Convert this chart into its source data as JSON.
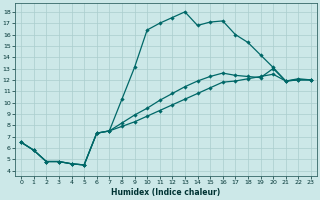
{
  "xlabel": "Humidex (Indice chaleur)",
  "bg_color": "#cce8e8",
  "line_color": "#006868",
  "grid_color": "#aacece",
  "xlim": [
    -0.5,
    23.5
  ],
  "ylim": [
    3.5,
    18.8
  ],
  "yticks": [
    4,
    5,
    6,
    7,
    8,
    9,
    10,
    11,
    12,
    13,
    14,
    15,
    16,
    17,
    18
  ],
  "xticks": [
    0,
    1,
    2,
    3,
    4,
    5,
    6,
    7,
    8,
    9,
    10,
    11,
    12,
    13,
    14,
    15,
    16,
    17,
    18,
    19,
    20,
    21,
    22,
    23
  ],
  "line1_x": [
    0,
    1,
    2,
    3,
    4,
    5,
    6,
    7,
    8,
    9,
    10,
    11,
    12,
    13,
    14,
    15,
    16,
    17,
    18,
    19,
    20,
    21,
    22,
    23
  ],
  "line1_y": [
    6.5,
    5.8,
    4.8,
    4.8,
    4.6,
    4.5,
    7.3,
    7.5,
    10.3,
    13.1,
    16.4,
    17.0,
    17.5,
    18.0,
    16.8,
    17.1,
    17.2,
    16.0,
    15.3,
    14.2,
    13.1,
    11.9,
    12.1,
    12.0
  ],
  "line2_x": [
    0,
    1,
    2,
    3,
    4,
    5,
    6,
    7,
    8,
    9,
    10,
    11,
    12,
    13,
    14,
    15,
    16,
    17,
    18,
    19,
    20,
    21,
    22,
    23
  ],
  "line2_y": [
    6.5,
    5.8,
    4.8,
    4.8,
    4.6,
    4.5,
    7.3,
    7.5,
    7.9,
    8.3,
    8.8,
    9.3,
    9.8,
    10.3,
    10.8,
    11.3,
    11.8,
    11.9,
    12.1,
    12.3,
    12.5,
    11.9,
    12.0,
    12.0
  ],
  "line3_x": [
    0,
    1,
    2,
    3,
    4,
    5,
    6,
    7,
    8,
    9,
    10,
    11,
    12,
    13,
    14,
    15,
    16,
    17,
    18,
    19,
    20,
    21,
    22,
    23
  ],
  "line3_y": [
    6.5,
    5.8,
    4.8,
    4.8,
    4.6,
    4.5,
    7.3,
    7.5,
    8.2,
    8.9,
    9.5,
    10.2,
    10.8,
    11.4,
    11.9,
    12.3,
    12.6,
    12.4,
    12.3,
    12.2,
    13.0,
    11.9,
    12.0,
    12.0
  ]
}
